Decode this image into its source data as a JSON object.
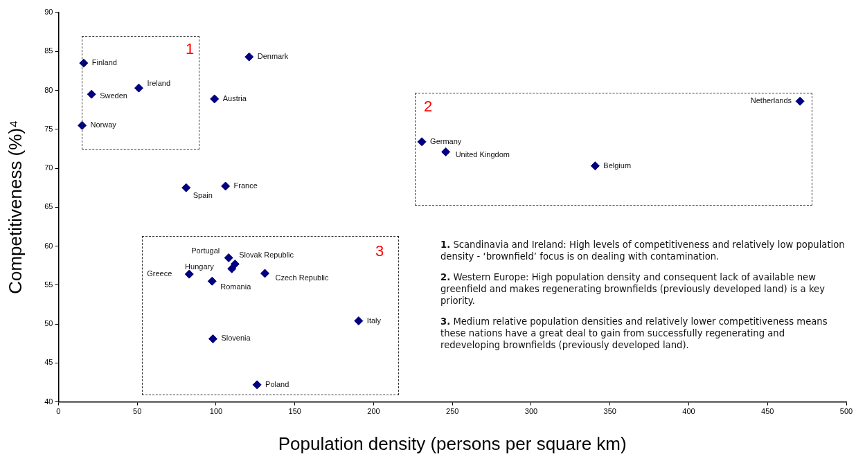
{
  "chart_data": {
    "type": "scatter",
    "xlabel": "Population density (persons per square km)",
    "ylabel": "Competitiveness (%)⁴",
    "series": [
      {
        "color": "#000080",
        "x": [
          16,
          21,
          51,
          15,
          121,
          99,
          81,
          106,
          112,
          110,
          108,
          83,
          97.5,
          131,
          98,
          126,
          190.5,
          230.6,
          245.8,
          340.6,
          470.6
        ],
        "values": [
          83.5,
          79.5,
          80.3,
          75.5,
          84.3,
          78.9,
          67.5,
          67.7,
          57.7,
          57.1,
          58.5,
          56.4,
          55.5,
          56.5,
          48.1,
          42.2,
          50.4,
          73.4,
          72.1,
          70.3,
          78.6
        ]
      }
    ],
    "marker": "diamond",
    "grid": false,
    "legend": false,
    "xlim": [
      0,
      500
    ],
    "xticks": [
      0,
      50,
      100,
      150,
      200,
      250,
      300,
      350,
      400,
      450,
      500
    ],
    "ylim": [
      40,
      90
    ],
    "yticks": [
      40,
      45,
      50,
      55,
      60,
      65,
      70,
      75,
      80,
      85,
      90
    ],
    "annotations": [
      "1",
      "2",
      "3",
      "1. Scandinavia and Ireland: High levels of competitiveness and relatively low population density - ‘brownfield’ focus is on dealing with contamination.",
      "2. Western Europe: High population density and consequent lack of available new greenfield and makes regenerating brownfields (previously developed land) is a key priority.",
      "3. Medium relative population densities and relatively lower competitiveness means these nations have a great deal to gain from successfully regenerating and redeveloping brownfields (previously developed land).",
      {
        "text": "Finland",
        "x": 16,
        "y": 83.5
      },
      {
        "text": "Sweden",
        "x": 21,
        "y": 79.5
      },
      {
        "text": "Ireland",
        "x": 51,
        "y": 80.3
      },
      {
        "text": "Norway",
        "x": 15,
        "y": 75.5
      },
      {
        "text": "Denmark",
        "x": 121,
        "y": 84.3
      },
      {
        "text": "Austria",
        "x": 99,
        "y": 78.9
      },
      {
        "text": "Spain",
        "x": 81,
        "y": 67.5
      },
      {
        "text": "France",
        "x": 106,
        "y": 67.7
      },
      {
        "text": "Portugal",
        "x": 112,
        "y": 57.7
      },
      {
        "text": "Hungary",
        "x": 110,
        "y": 57.1
      },
      {
        "text": "Slovak Republic",
        "x": 108,
        "y": 58.5
      },
      {
        "text": "Greece",
        "x": 83,
        "y": 56.4
      },
      {
        "text": "Romania",
        "x": 97.5,
        "y": 55.5
      },
      {
        "text": "Czech Republic",
        "x": 131,
        "y": 56.5
      },
      {
        "text": "Slovenia",
        "x": 98,
        "y": 48.1
      },
      {
        "text": "Poland",
        "x": 126,
        "y": 42.2
      },
      {
        "text": "Italy",
        "x": 190.5,
        "y": 50.4
      },
      {
        "text": "Germany",
        "x": 230.6,
        "y": 73.4
      },
      {
        "text": "United Kingdom",
        "x": 245.8,
        "y": 72.1
      },
      {
        "text": "Belgium",
        "x": 340.6,
        "y": 70.3
      },
      {
        "text": "Netherlands",
        "x": 470.6,
        "y": 78.6
      }
    ]
  }
}
